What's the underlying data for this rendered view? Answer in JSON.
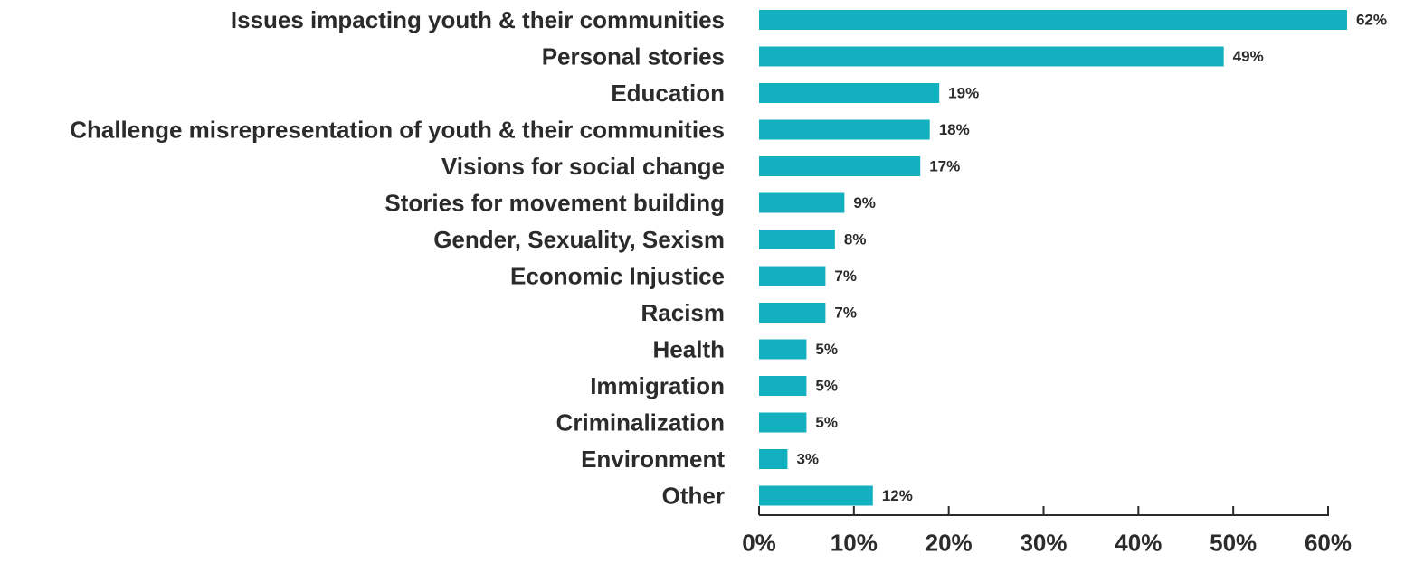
{
  "colors": {
    "bar": "#13b0bf",
    "axis": "#2b2b2b",
    "text": "#2b2b2b"
  },
  "chart_data": {
    "type": "bar",
    "orientation": "horizontal",
    "title": "",
    "xlabel": "",
    "ylabel": "",
    "xlim": [
      0,
      60
    ],
    "grid": false,
    "legend": "none",
    "categories": [
      "Issues impacting youth & their communities",
      "Personal stories",
      "Education",
      "Challenge misrepresentation of youth & their communities",
      "Visions for social change",
      "Stories for movement building",
      "Gender, Sexuality, Sexism",
      "Economic Injustice",
      "Racism",
      "Health",
      "Immigration",
      "Criminalization",
      "Environment",
      "Other"
    ],
    "values": [
      62,
      49,
      19,
      18,
      17,
      9,
      8,
      7,
      7,
      5,
      5,
      5,
      3,
      12
    ],
    "value_labels": [
      "62%",
      "49%",
      "19%",
      "18%",
      "17%",
      "9%",
      "8%",
      "7%",
      "7%",
      "5%",
      "5%",
      "5%",
      "3%",
      "12%"
    ],
    "x_ticks": [
      0,
      10,
      20,
      30,
      40,
      50,
      60
    ],
    "x_tick_labels": [
      "0%",
      "10%",
      "20%",
      "30%",
      "40%",
      "50%",
      "60%"
    ]
  }
}
